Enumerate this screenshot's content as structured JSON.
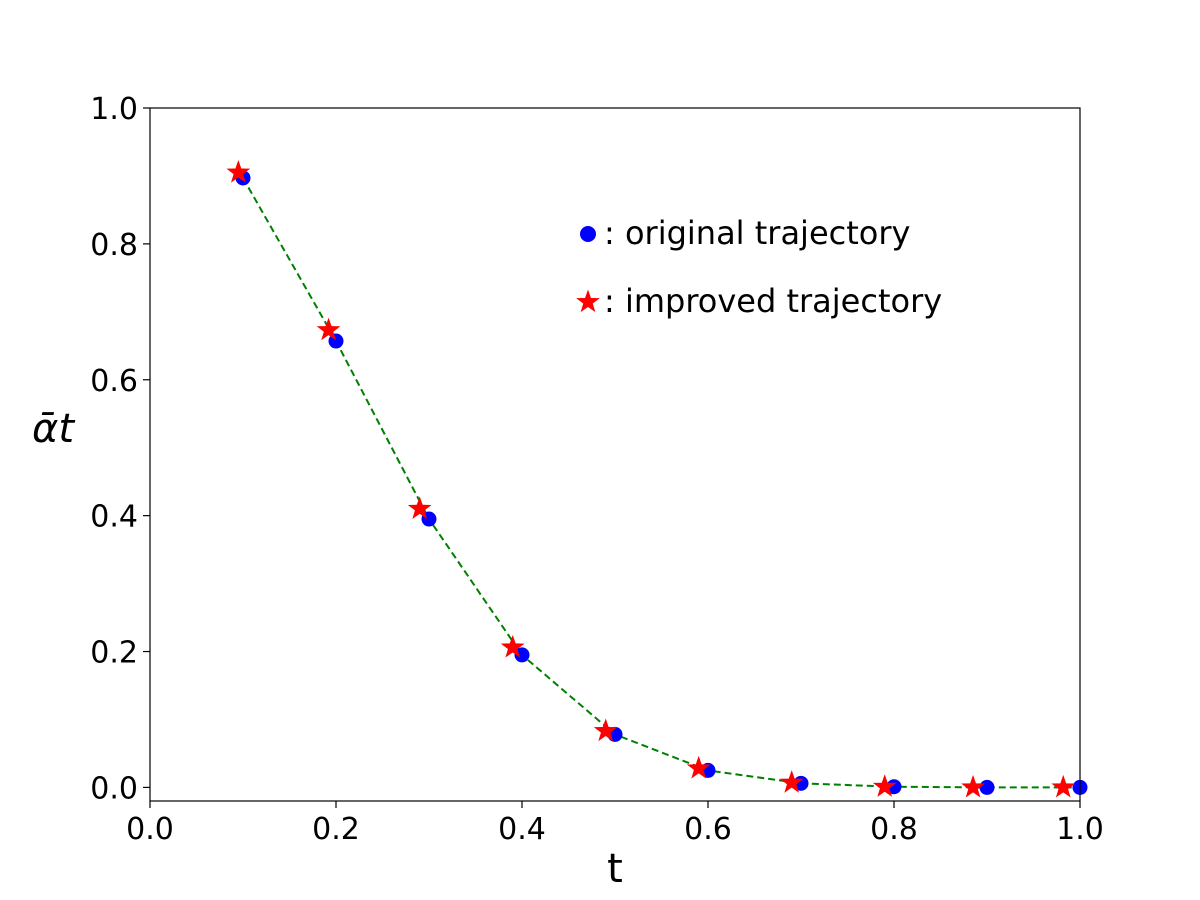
{
  "chart_data": {
    "type": "scatter",
    "xlabel": "t",
    "ylabel": "ᾱt",
    "xlim": [
      0.0,
      1.0
    ],
    "ylim": [
      -0.02,
      1.0
    ],
    "xticks": [
      "0.0",
      "0.2",
      "0.4",
      "0.6",
      "0.8",
      "1.0"
    ],
    "yticks": [
      "0.0",
      "0.2",
      "0.4",
      "0.6",
      "0.8",
      "1.0"
    ],
    "grid": false,
    "legend_position": "top-right",
    "series": [
      {
        "name": ": original trajectory",
        "marker": "circle",
        "color": "#0000ff",
        "x": [
          0.1,
          0.2,
          0.3,
          0.4,
          0.5,
          0.6,
          0.7,
          0.8,
          0.9,
          1.0
        ],
        "y": [
          0.897,
          0.657,
          0.395,
          0.195,
          0.078,
          0.025,
          0.006,
          0.001,
          0.0,
          0.0
        ]
      },
      {
        "name": ": improved trajectory",
        "marker": "star",
        "color": "#ff0000",
        "x": [
          0.095,
          0.192,
          0.29,
          0.39,
          0.49,
          0.59,
          0.69,
          0.79,
          0.885,
          0.982
        ],
        "y": [
          0.905,
          0.673,
          0.41,
          0.206,
          0.083,
          0.028,
          0.007,
          0.001,
          0.0,
          0.0
        ]
      }
    ],
    "connector_line": {
      "style": "dashed",
      "color": "#008000"
    }
  }
}
